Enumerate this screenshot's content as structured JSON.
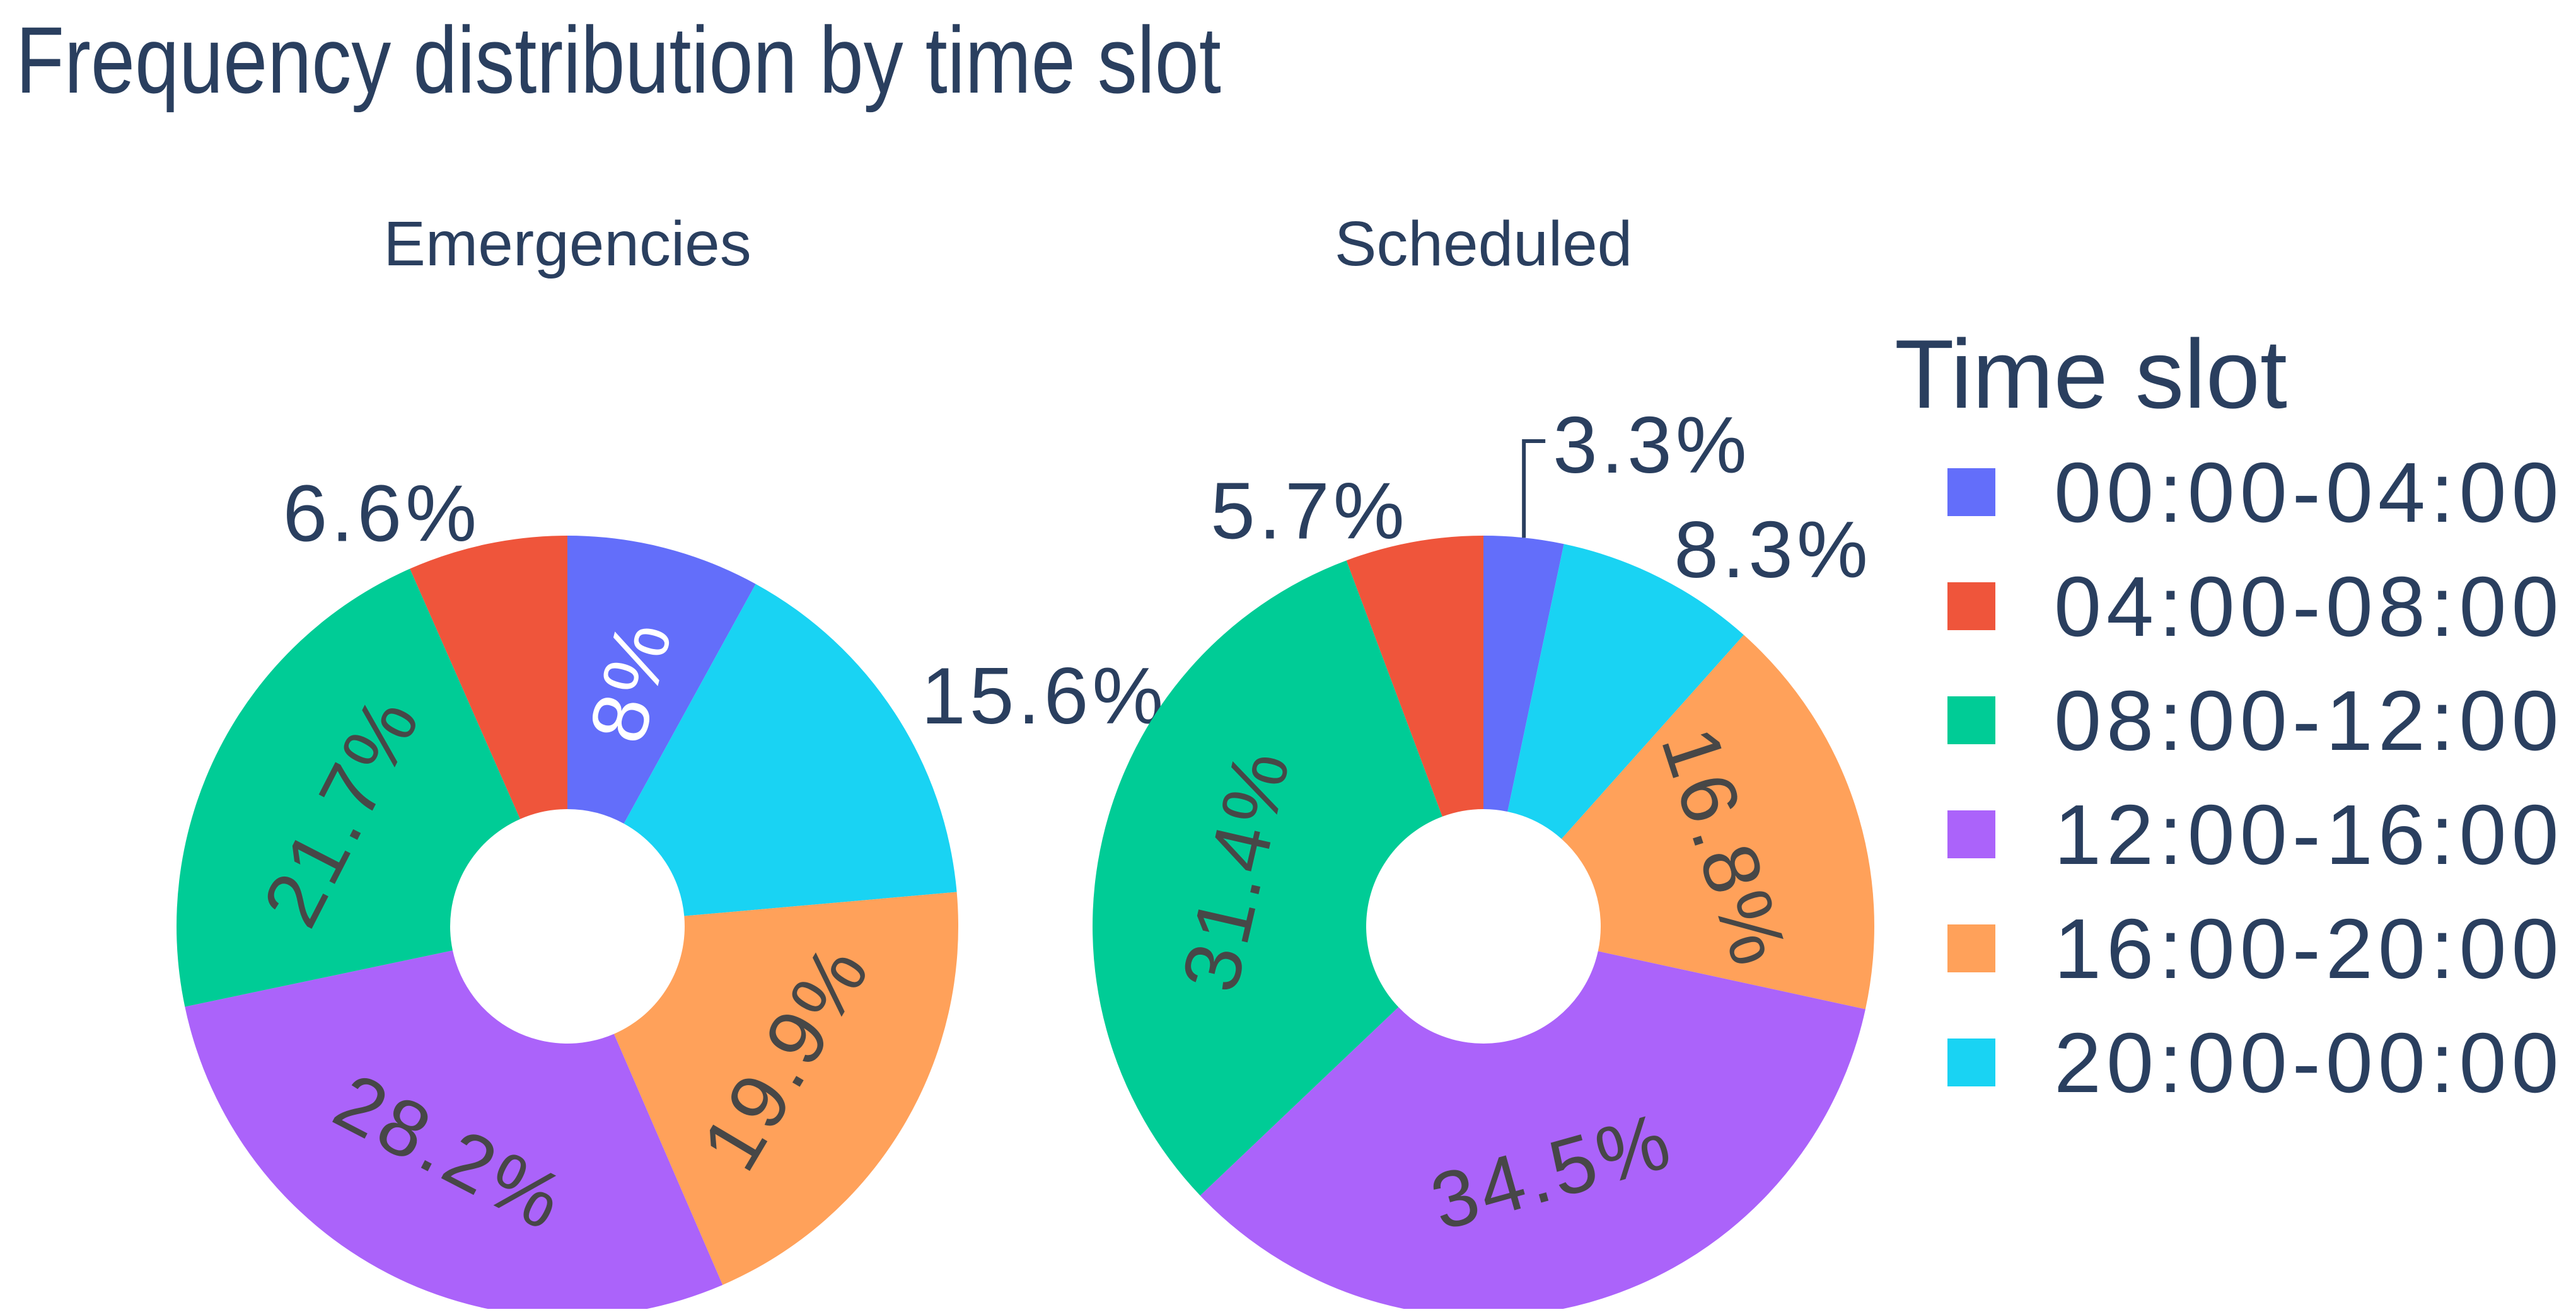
{
  "title": "Frequency distribution by time slot",
  "colors": {
    "text": "#2a3f5f",
    "inside_text_dark": "#474747",
    "inside_text_light": "#ffffff",
    "background": "#ffffff"
  },
  "legend": {
    "title": "Time slot",
    "position": "right",
    "items": [
      {
        "label": "00:00-04:00",
        "color": "#636EFA"
      },
      {
        "label": "04:00-08:00",
        "color": "#EF553B"
      },
      {
        "label": "08:00-12:00",
        "color": "#00CC96"
      },
      {
        "label": "12:00-16:00",
        "color": "#AB63FA"
      },
      {
        "label": "16:00-20:00",
        "color": "#FFA15A"
      },
      {
        "label": "20:00-00:00",
        "color": "#19D3F3"
      }
    ]
  },
  "chart_data": [
    {
      "type": "pie",
      "title": "Emergencies",
      "hole_ratio": 0.3,
      "categories": [
        "00:00-04:00",
        "04:00-08:00",
        "08:00-12:00",
        "12:00-16:00",
        "16:00-20:00",
        "20:00-00:00"
      ],
      "values": [
        8.0,
        6.6,
        21.7,
        28.2,
        19.9,
        15.6
      ],
      "display_labels": [
        "8%",
        "6.6%",
        "21.7%",
        "28.2%",
        "19.9%",
        "15.6%"
      ],
      "label_placement": [
        "inside-radial",
        "outside",
        "inside",
        "inside",
        "inside",
        "outside"
      ],
      "label_color_mode": [
        "light",
        "outside",
        "dark",
        "dark",
        "dark",
        "outside"
      ],
      "slice_order_clockwise_from_top": [
        0,
        5,
        4,
        3,
        2,
        1
      ]
    },
    {
      "type": "pie",
      "title": "Scheduled",
      "hole_ratio": 0.3,
      "categories": [
        "00:00-04:00",
        "04:00-08:00",
        "08:00-12:00",
        "12:00-16:00",
        "16:00-20:00",
        "20:00-00:00"
      ],
      "values": [
        3.3,
        5.7,
        31.4,
        34.5,
        16.8,
        8.3
      ],
      "display_labels": [
        "3.3%",
        "5.7%",
        "31.4%",
        "34.5%",
        "16.8%",
        "8.3%"
      ],
      "label_placement": [
        "outside-line",
        "outside",
        "inside",
        "inside",
        "inside",
        "outside"
      ],
      "label_color_mode": [
        "outside",
        "outside",
        "dark",
        "dark",
        "dark",
        "outside"
      ],
      "slice_order_clockwise_from_top": [
        0,
        5,
        4,
        3,
        2,
        1
      ]
    }
  ]
}
